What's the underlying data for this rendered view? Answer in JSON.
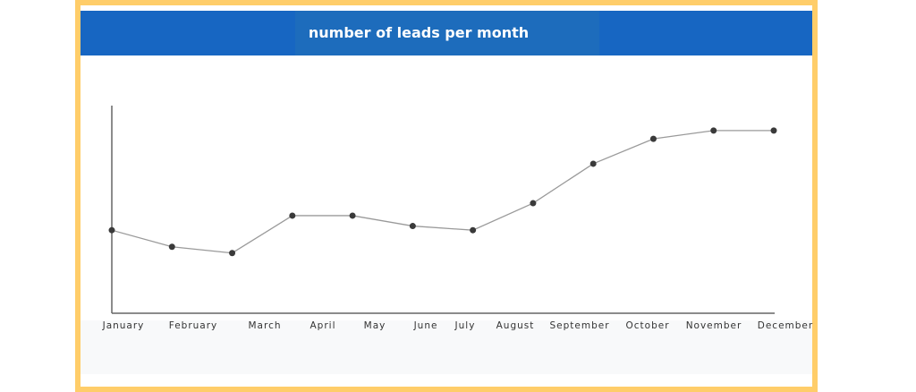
{
  "chart_data": {
    "type": "line",
    "title": "number of leads per month",
    "xlabel": "",
    "ylabel": "",
    "categories": [
      "January",
      "February",
      "March",
      "April",
      "May",
      "June",
      "July",
      "August",
      "September",
      "October",
      "November",
      "December"
    ],
    "values": [
      40,
      32,
      29,
      47,
      47,
      42,
      40,
      53,
      72,
      84,
      88,
      88
    ],
    "ylim": [
      0,
      100
    ],
    "y_tick_labels_shown": false,
    "grid": false,
    "legend": "none",
    "colors": {
      "line": "#9a9a9a",
      "marker": "#3a3a3a",
      "header": "#1766C2",
      "frame": "#FFCD69"
    }
  }
}
